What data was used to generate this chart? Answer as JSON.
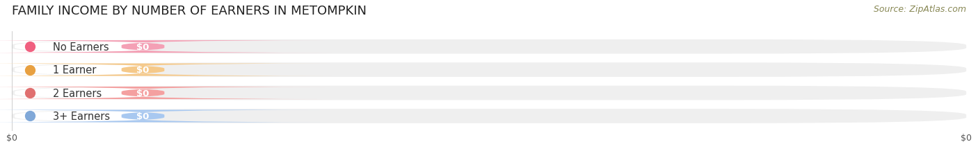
{
  "title": "FAMILY INCOME BY NUMBER OF EARNERS IN METOMPKIN",
  "source_text": "Source: ZipAtlas.com",
  "categories": [
    "No Earners",
    "1 Earner",
    "2 Earners",
    "3+ Earners"
  ],
  "values": [
    0,
    0,
    0,
    0
  ],
  "bar_colors": [
    "#f4a0b5",
    "#f5c98a",
    "#f4a0a0",
    "#a8c8f0"
  ],
  "dot_colors": [
    "#f06080",
    "#e8a040",
    "#e07070",
    "#80a8d8"
  ],
  "value_labels": [
    "$0",
    "$0",
    "$0",
    "$0"
  ],
  "xlim": [
    0,
    1
  ],
  "background_color": "#ffffff",
  "bar_bg_color": "#efefef",
  "bar_bg_color2": "#e8e8e8",
  "title_fontsize": 13,
  "source_fontsize": 9,
  "label_fontsize": 10.5,
  "value_fontsize": 9.5
}
